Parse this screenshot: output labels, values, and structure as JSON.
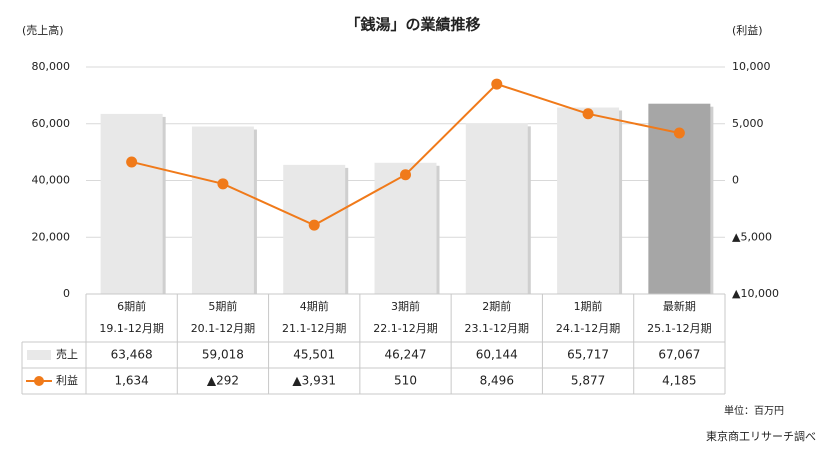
{
  "chart_data": {
    "type": "bar-line",
    "title": "「銭湯」の業績推移",
    "y_label": "(売上高)",
    "y2_label": "(利益)",
    "unit_note": "単位：百万円",
    "source": "東京商工リサーチ調べ",
    "categories": [
      "6期前",
      "5期前",
      "4期前",
      "3期前",
      "2期前",
      "1期前",
      "最新期"
    ],
    "periods": [
      "19.1-12月期",
      "20.1-12月期",
      "21.1-12月期",
      "22.1-12月期",
      "23.1-12月期",
      "24.1-12月期",
      "25.1-12月期"
    ],
    "series": [
      {
        "name": "売上",
        "type": "bar",
        "colors": [
          "#e8e8e8",
          "#e8e8e8",
          "#e8e8e8",
          "#e8e8e8",
          "#e8e8e8",
          "#e8e8e8",
          "#a6a6a6"
        ],
        "values": [
          63468,
          59018,
          45501,
          46247,
          60144,
          65717,
          67067
        ],
        "value_labels": [
          "63,468",
          "59,018",
          "45,501",
          "46,247",
          "60,144",
          "65,717",
          "67,067"
        ]
      },
      {
        "name": "利益",
        "type": "line",
        "axis": "y2",
        "color": "#f07a1a",
        "values": [
          1634,
          -292,
          -3931,
          510,
          8496,
          5877,
          4185
        ],
        "value_labels": [
          "1,634",
          "▲292",
          "▲3,931",
          "510",
          "8,496",
          "5,877",
          "4,185"
        ]
      }
    ],
    "ylim": [
      0,
      80000
    ],
    "yticks": [
      0,
      {
        "value": 20000,
        "label": "20,000"
      },
      {
        "value": 40000,
        "label": "40,000"
      },
      {
        "value": 60000,
        "label": "60,000"
      },
      {
        "value": 80000,
        "label": "80,000"
      }
    ],
    "y2lim": [
      -10000,
      10000
    ],
    "y2ticks": [
      {
        "value": -10000,
        "label": "▲10,000"
      },
      {
        "value": -5000,
        "label": "▲5,000"
      },
      0,
      {
        "value": 5000,
        "label": "5,000"
      },
      {
        "value": 10000,
        "label": "10,000"
      }
    ],
    "grid": true
  }
}
